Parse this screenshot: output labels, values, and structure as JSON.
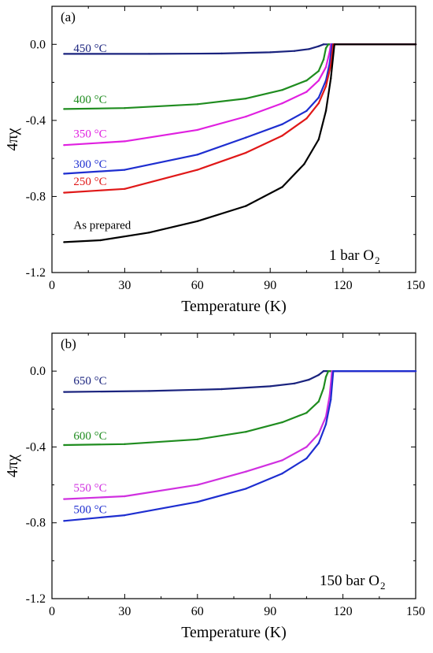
{
  "chart_data": [
    {
      "type": "line",
      "panel_label": "(a)",
      "condition": "1 bar O",
      "condition_sub": "2",
      "xlabel": "Temperature (K)",
      "ylabel": "4πχ",
      "xlim": [
        0,
        150
      ],
      "ylim": [
        -1.2,
        0.2
      ],
      "xticks": [
        0,
        30,
        60,
        90,
        120,
        150
      ],
      "yticks": [
        -1.2,
        -0.8,
        -0.4,
        0.0
      ],
      "ytick_labels": [
        "-1.2",
        "-0.8",
        "-0.4",
        "0.0"
      ],
      "series": [
        {
          "name": "450 °C",
          "color": "#1a237e",
          "label_at": [
            5,
            -0.04
          ],
          "points": [
            [
              5,
              -0.05
            ],
            [
              40,
              -0.05
            ],
            [
              70,
              -0.048
            ],
            [
              90,
              -0.042
            ],
            [
              100,
              -0.035
            ],
            [
              106,
              -0.025
            ],
            [
              110,
              -0.01
            ],
            [
              112,
              0.0
            ],
            [
              150,
              0.0
            ]
          ]
        },
        {
          "name": "400 °C",
          "color": "#1f8c1f",
          "label_at": [
            5,
            -0.31
          ],
          "points": [
            [
              5,
              -0.34
            ],
            [
              30,
              -0.335
            ],
            [
              60,
              -0.315
            ],
            [
              80,
              -0.285
            ],
            [
              95,
              -0.24
            ],
            [
              105,
              -0.19
            ],
            [
              110,
              -0.14
            ],
            [
              112,
              -0.08
            ],
            [
              113,
              -0.02
            ],
            [
              114,
              0.0
            ],
            [
              150,
              0.0
            ]
          ]
        },
        {
          "name": "350 °C",
          "color": "#e020e0",
          "label_at": [
            5,
            -0.49
          ],
          "points": [
            [
              5,
              -0.53
            ],
            [
              30,
              -0.51
            ],
            [
              60,
              -0.45
            ],
            [
              80,
              -0.38
            ],
            [
              95,
              -0.31
            ],
            [
              105,
              -0.25
            ],
            [
              110,
              -0.19
            ],
            [
              113,
              -0.12
            ],
            [
              114.5,
              -0.04
            ],
            [
              115,
              0.0
            ],
            [
              150,
              0.0
            ]
          ]
        },
        {
          "name": "300 °C",
          "color": "#1e2ed0",
          "label_at": [
            5,
            -0.65
          ],
          "points": [
            [
              5,
              -0.68
            ],
            [
              30,
              -0.66
            ],
            [
              60,
              -0.58
            ],
            [
              80,
              -0.49
            ],
            [
              95,
              -0.42
            ],
            [
              105,
              -0.35
            ],
            [
              110,
              -0.28
            ],
            [
              113,
              -0.19
            ],
            [
              114.5,
              -0.1
            ],
            [
              115.5,
              0.0
            ],
            [
              150,
              0.0
            ]
          ]
        },
        {
          "name": "250 °C",
          "color": "#e01818",
          "label_at": [
            5,
            -0.74
          ],
          "points": [
            [
              5,
              -0.78
            ],
            [
              30,
              -0.76
            ],
            [
              60,
              -0.66
            ],
            [
              80,
              -0.57
            ],
            [
              95,
              -0.48
            ],
            [
              105,
              -0.39
            ],
            [
              110,
              -0.31
            ],
            [
              113,
              -0.22
            ],
            [
              115,
              -0.11
            ],
            [
              116,
              0.0
            ],
            [
              150,
              0.0
            ]
          ]
        },
        {
          "name": "As prepared",
          "color": "#000000",
          "label_at": [
            5,
            -0.97
          ],
          "points": [
            [
              5,
              -1.04
            ],
            [
              20,
              -1.03
            ],
            [
              40,
              -0.99
            ],
            [
              60,
              -0.93
            ],
            [
              80,
              -0.85
            ],
            [
              95,
              -0.75
            ],
            [
              104,
              -0.63
            ],
            [
              110,
              -0.5
            ],
            [
              113,
              -0.35
            ],
            [
              115,
              -0.18
            ],
            [
              116.5,
              0.0
            ],
            [
              150,
              0.0
            ]
          ]
        }
      ]
    },
    {
      "type": "line",
      "panel_label": "(b)",
      "condition": "150 bar O",
      "condition_sub": "2",
      "xlabel": "Temperature (K)",
      "ylabel": "4πχ",
      "xlim": [
        0,
        150
      ],
      "ylim": [
        -1.2,
        0.2
      ],
      "xticks": [
        0,
        30,
        60,
        90,
        120,
        150
      ],
      "yticks": [
        -1.2,
        -0.8,
        -0.4,
        0.0
      ],
      "ytick_labels": [
        "-1.2",
        "-0.8",
        "-0.4",
        "0.0"
      ],
      "series": [
        {
          "name": "650 °C",
          "color": "#1a237e",
          "label_at": [
            5,
            -0.07
          ],
          "points": [
            [
              5,
              -0.11
            ],
            [
              40,
              -0.105
            ],
            [
              70,
              -0.095
            ],
            [
              90,
              -0.08
            ],
            [
              100,
              -0.065
            ],
            [
              106,
              -0.045
            ],
            [
              110,
              -0.02
            ],
            [
              112,
              0.0
            ],
            [
              150,
              0.0
            ]
          ]
        },
        {
          "name": "600 °C",
          "color": "#1f8c1f",
          "label_at": [
            5,
            -0.36
          ],
          "points": [
            [
              5,
              -0.39
            ],
            [
              30,
              -0.385
            ],
            [
              60,
              -0.36
            ],
            [
              80,
              -0.32
            ],
            [
              95,
              -0.27
            ],
            [
              105,
              -0.22
            ],
            [
              110,
              -0.16
            ],
            [
              112,
              -0.09
            ],
            [
              113,
              -0.03
            ],
            [
              114,
              0.0
            ],
            [
              150,
              0.0
            ]
          ]
        },
        {
          "name": "550 °C",
          "color": "#d030e0",
          "label_at": [
            5,
            -0.635
          ],
          "points": [
            [
              5,
              -0.675
            ],
            [
              30,
              -0.66
            ],
            [
              60,
              -0.6
            ],
            [
              80,
              -0.53
            ],
            [
              95,
              -0.47
            ],
            [
              105,
              -0.4
            ],
            [
              110,
              -0.33
            ],
            [
              113,
              -0.24
            ],
            [
              114.5,
              -0.13
            ],
            [
              115.5,
              0.0
            ],
            [
              150,
              0.0
            ]
          ]
        },
        {
          "name": "500 °C",
          "color": "#1e2ed0",
          "label_at": [
            5,
            -0.75
          ],
          "points": [
            [
              5,
              -0.79
            ],
            [
              30,
              -0.76
            ],
            [
              60,
              -0.69
            ],
            [
              80,
              -0.62
            ],
            [
              95,
              -0.54
            ],
            [
              105,
              -0.46
            ],
            [
              110,
              -0.38
            ],
            [
              113,
              -0.28
            ],
            [
              115,
              -0.15
            ],
            [
              116,
              0.0
            ],
            [
              150,
              0.0
            ]
          ]
        }
      ]
    }
  ]
}
